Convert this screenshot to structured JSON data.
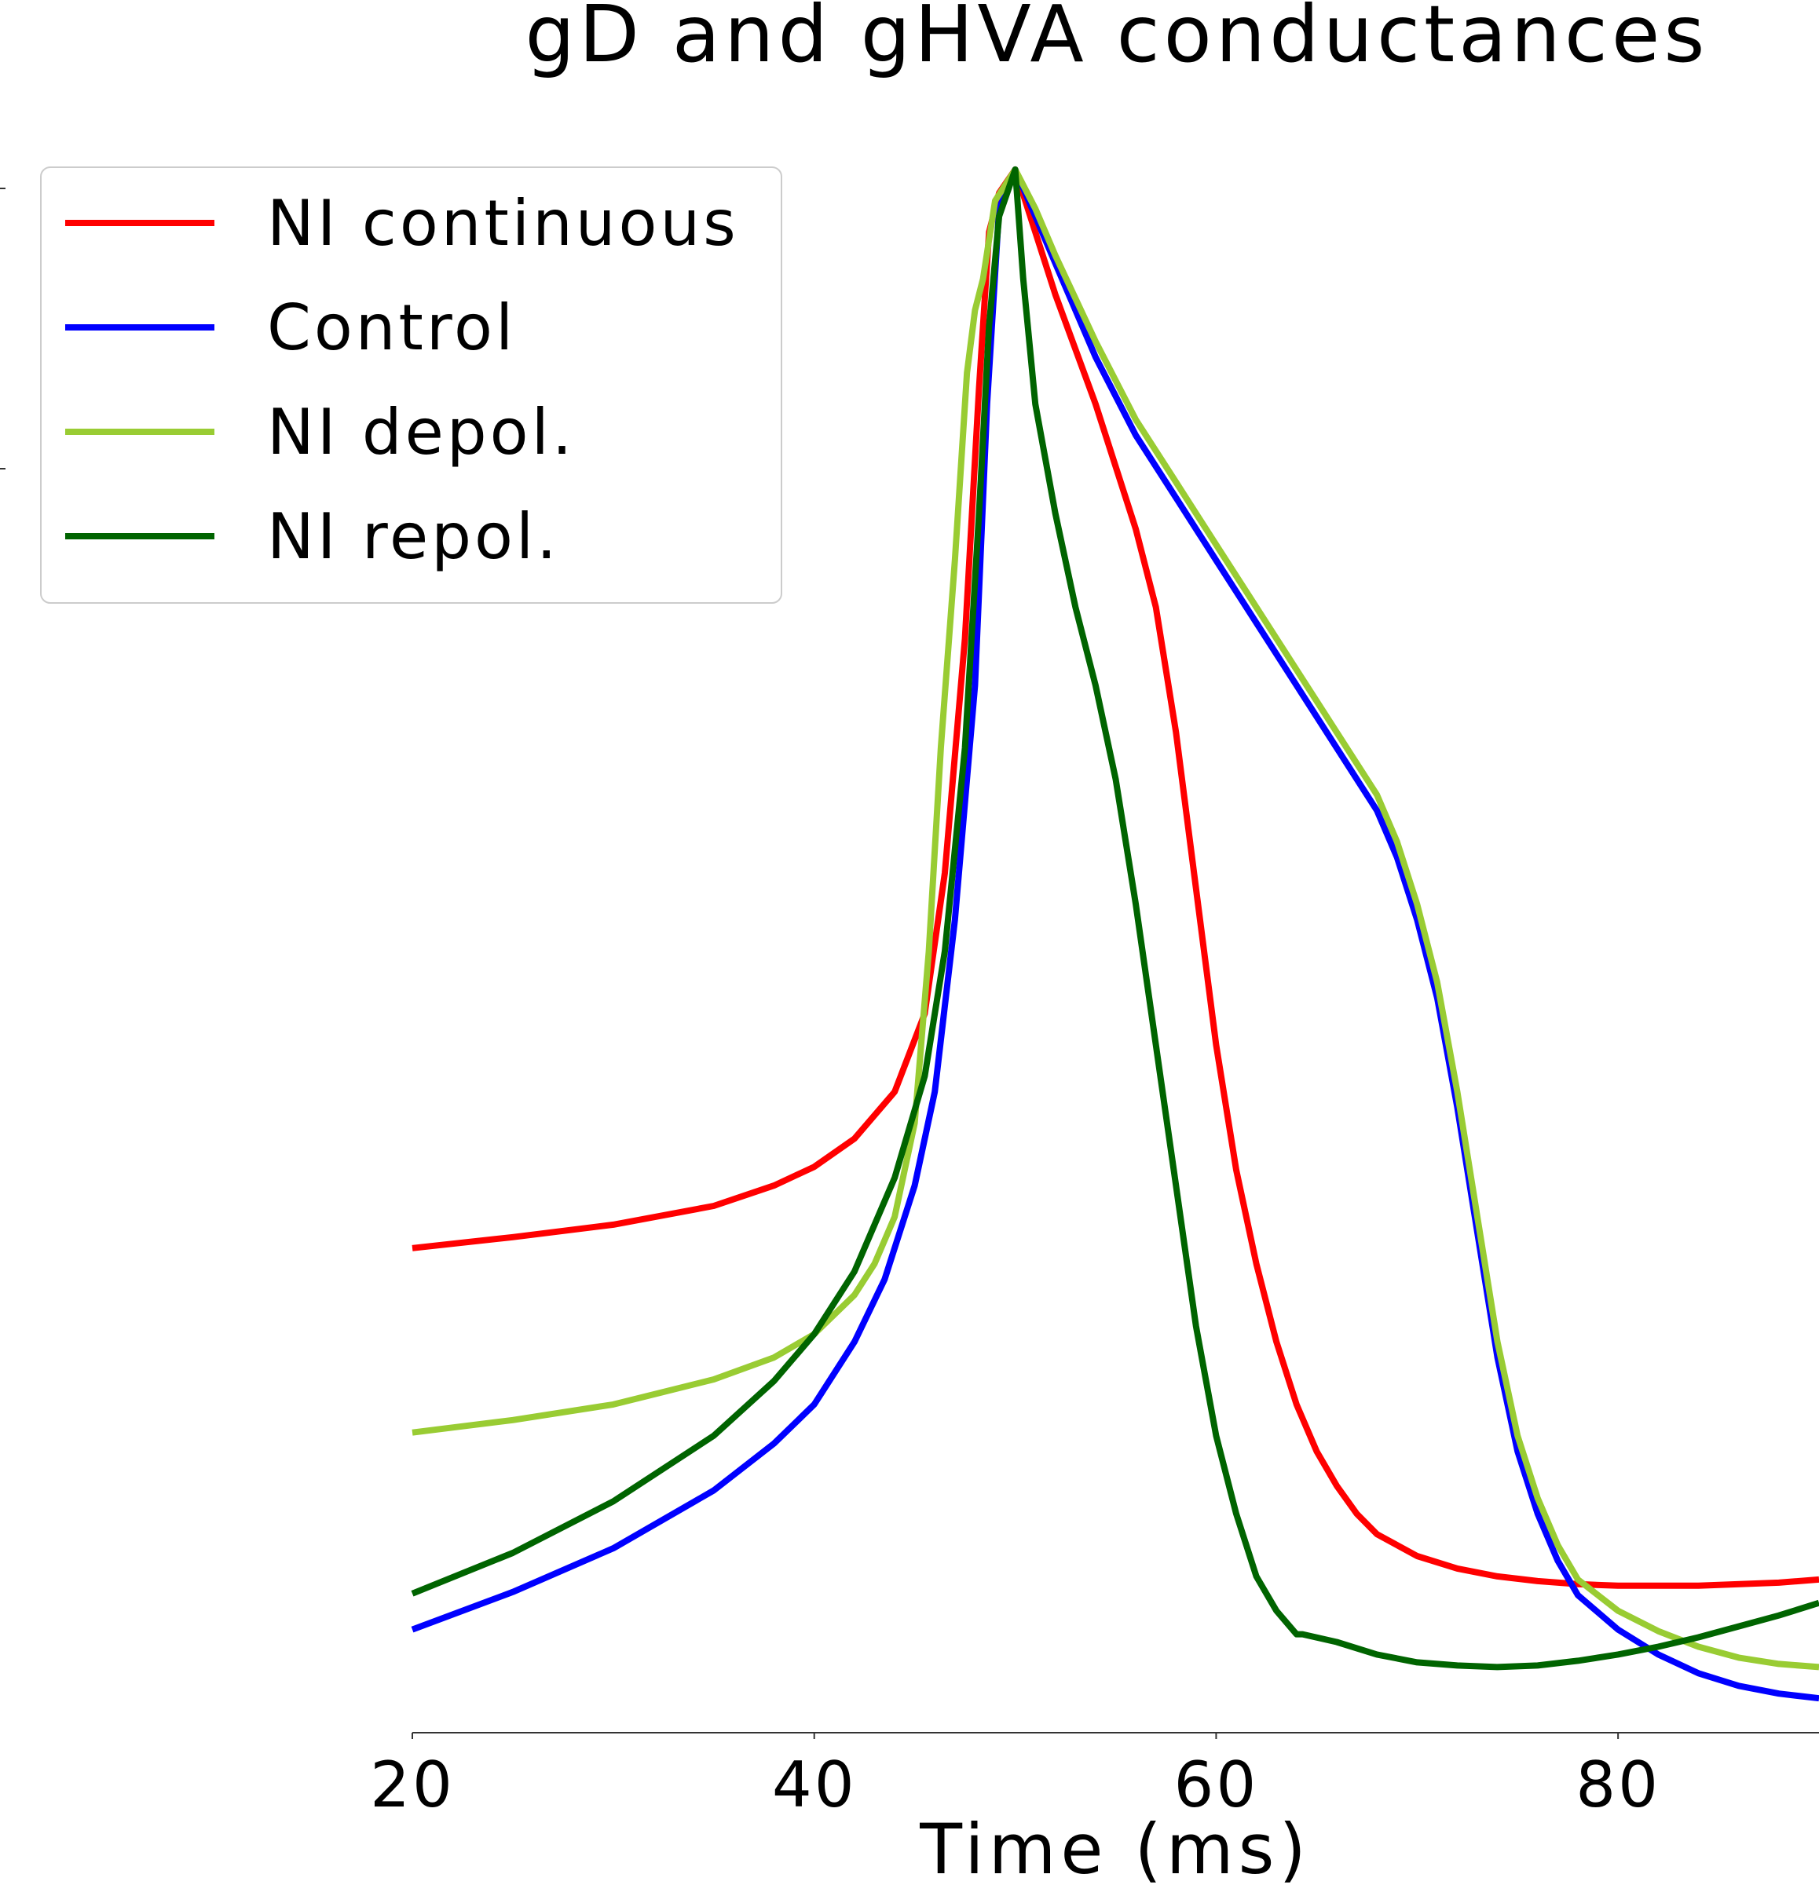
{
  "chart_data": {
    "type": "line",
    "title": "gD and gHVA conductances",
    "xlabel": "Time (ms)",
    "ylabel": "",
    "xlim": [
      20,
      90
    ],
    "ylim": [
      0,
      1.01
    ],
    "x_ticks": [
      "20",
      "40",
      "60",
      "80"
    ],
    "legend_position": "top-left",
    "series": [
      {
        "name": "NI continuous",
        "color": "#ff0000",
        "points": [
          [
            20,
            0.31
          ],
          [
            25,
            0.317
          ],
          [
            30,
            0.325
          ],
          [
            35,
            0.337
          ],
          [
            38,
            0.35
          ],
          [
            40,
            0.362
          ],
          [
            42,
            0.38
          ],
          [
            44,
            0.41
          ],
          [
            45.5,
            0.46
          ],
          [
            46.5,
            0.55
          ],
          [
            47.5,
            0.7
          ],
          [
            48.2,
            0.86
          ],
          [
            48.7,
            0.96
          ],
          [
            49.2,
            0.985
          ],
          [
            50,
            1.0
          ],
          [
            51,
            0.96
          ],
          [
            52,
            0.92
          ],
          [
            54,
            0.85
          ],
          [
            56,
            0.77
          ],
          [
            57,
            0.72
          ],
          [
            58,
            0.64
          ],
          [
            59,
            0.54
          ],
          [
            60,
            0.44
          ],
          [
            61,
            0.36
          ],
          [
            62,
            0.3
          ],
          [
            63,
            0.25
          ],
          [
            64,
            0.21
          ],
          [
            65,
            0.18
          ],
          [
            66,
            0.158
          ],
          [
            67,
            0.14
          ],
          [
            68,
            0.127
          ],
          [
            70,
            0.113
          ],
          [
            72,
            0.105
          ],
          [
            74,
            0.1
          ],
          [
            76,
            0.097
          ],
          [
            78,
            0.095
          ],
          [
            80,
            0.094
          ],
          [
            84,
            0.094
          ],
          [
            88,
            0.096
          ],
          [
            90,
            0.098
          ]
        ]
      },
      {
        "name": "Control",
        "color": "#0000ff",
        "points": [
          [
            20,
            0.066
          ],
          [
            25,
            0.09
          ],
          [
            30,
            0.118
          ],
          [
            35,
            0.155
          ],
          [
            38,
            0.185
          ],
          [
            40,
            0.21
          ],
          [
            42,
            0.25
          ],
          [
            43.5,
            0.29
          ],
          [
            45,
            0.35
          ],
          [
            46,
            0.41
          ],
          [
            47,
            0.52
          ],
          [
            48,
            0.67
          ],
          [
            48.6,
            0.85
          ],
          [
            49.2,
            0.975
          ],
          [
            50,
            1.0
          ],
          [
            51,
            0.97
          ],
          [
            52,
            0.94
          ],
          [
            54,
            0.88
          ],
          [
            56,
            0.83
          ],
          [
            58,
            0.79
          ],
          [
            60,
            0.75
          ],
          [
            62,
            0.71
          ],
          [
            64,
            0.67
          ],
          [
            66,
            0.63
          ],
          [
            68,
            0.59
          ],
          [
            69,
            0.56
          ],
          [
            70,
            0.52
          ],
          [
            71,
            0.47
          ],
          [
            72,
            0.4
          ],
          [
            73,
            0.32
          ],
          [
            74,
            0.24
          ],
          [
            75,
            0.18
          ],
          [
            76,
            0.14
          ],
          [
            77,
            0.11
          ],
          [
            78,
            0.088
          ],
          [
            80,
            0.066
          ],
          [
            82,
            0.05
          ],
          [
            84,
            0.038
          ],
          [
            86,
            0.03
          ],
          [
            88,
            0.025
          ],
          [
            90,
            0.022
          ]
        ]
      },
      {
        "name": "NI depol.",
        "color": "#99cc33",
        "points": [
          [
            20,
            0.192
          ],
          [
            25,
            0.2
          ],
          [
            30,
            0.21
          ],
          [
            35,
            0.226
          ],
          [
            38,
            0.24
          ],
          [
            40,
            0.255
          ],
          [
            42,
            0.28
          ],
          [
            43,
            0.3
          ],
          [
            44,
            0.33
          ],
          [
            45,
            0.39
          ],
          [
            45.7,
            0.5
          ],
          [
            46.3,
            0.63
          ],
          [
            47,
            0.75
          ],
          [
            47.6,
            0.87
          ],
          [
            48,
            0.91
          ],
          [
            48.4,
            0.93
          ],
          [
            49,
            0.98
          ],
          [
            50,
            1.0
          ],
          [
            51,
            0.975
          ],
          [
            52,
            0.945
          ],
          [
            54,
            0.89
          ],
          [
            56,
            0.84
          ],
          [
            58,
            0.8
          ],
          [
            60,
            0.76
          ],
          [
            62,
            0.72
          ],
          [
            64,
            0.68
          ],
          [
            66,
            0.64
          ],
          [
            68,
            0.6
          ],
          [
            69,
            0.57
          ],
          [
            70,
            0.53
          ],
          [
            71,
            0.48
          ],
          [
            72,
            0.41
          ],
          [
            73,
            0.33
          ],
          [
            74,
            0.25
          ],
          [
            75,
            0.19
          ],
          [
            76,
            0.15
          ],
          [
            77,
            0.12
          ],
          [
            78,
            0.098
          ],
          [
            80,
            0.078
          ],
          [
            82,
            0.065
          ],
          [
            84,
            0.055
          ],
          [
            86,
            0.048
          ],
          [
            88,
            0.044
          ],
          [
            90,
            0.042
          ]
        ]
      },
      {
        "name": "NI repol.",
        "color": "#006400",
        "points": [
          [
            20,
            0.089
          ],
          [
            25,
            0.115
          ],
          [
            30,
            0.148
          ],
          [
            35,
            0.19
          ],
          [
            38,
            0.225
          ],
          [
            40,
            0.255
          ],
          [
            42,
            0.295
          ],
          [
            44,
            0.355
          ],
          [
            45.5,
            0.42
          ],
          [
            46.5,
            0.5
          ],
          [
            47.5,
            0.63
          ],
          [
            48.2,
            0.78
          ],
          [
            48.7,
            0.9
          ],
          [
            49.2,
            0.97
          ],
          [
            50,
            1.0
          ],
          [
            50.4,
            0.93
          ],
          [
            51,
            0.85
          ],
          [
            52,
            0.78
          ],
          [
            53,
            0.72
          ],
          [
            54,
            0.67
          ],
          [
            55,
            0.61
          ],
          [
            56,
            0.53
          ],
          [
            57,
            0.44
          ],
          [
            58,
            0.35
          ],
          [
            59,
            0.26
          ],
          [
            60,
            0.19
          ],
          [
            61,
            0.14
          ],
          [
            62,
            0.1
          ],
          [
            63,
            0.078
          ],
          [
            64,
            0.063
          ],
          [
            64.3,
            0.063
          ],
          [
            66,
            0.058
          ],
          [
            68,
            0.05
          ],
          [
            70,
            0.045
          ],
          [
            72,
            0.043
          ],
          [
            74,
            0.042
          ],
          [
            76,
            0.043
          ],
          [
            78,
            0.046
          ],
          [
            80,
            0.05
          ],
          [
            82,
            0.055
          ],
          [
            84,
            0.061
          ],
          [
            86,
            0.068
          ],
          [
            88,
            0.075
          ],
          [
            90,
            0.083
          ]
        ]
      }
    ]
  }
}
